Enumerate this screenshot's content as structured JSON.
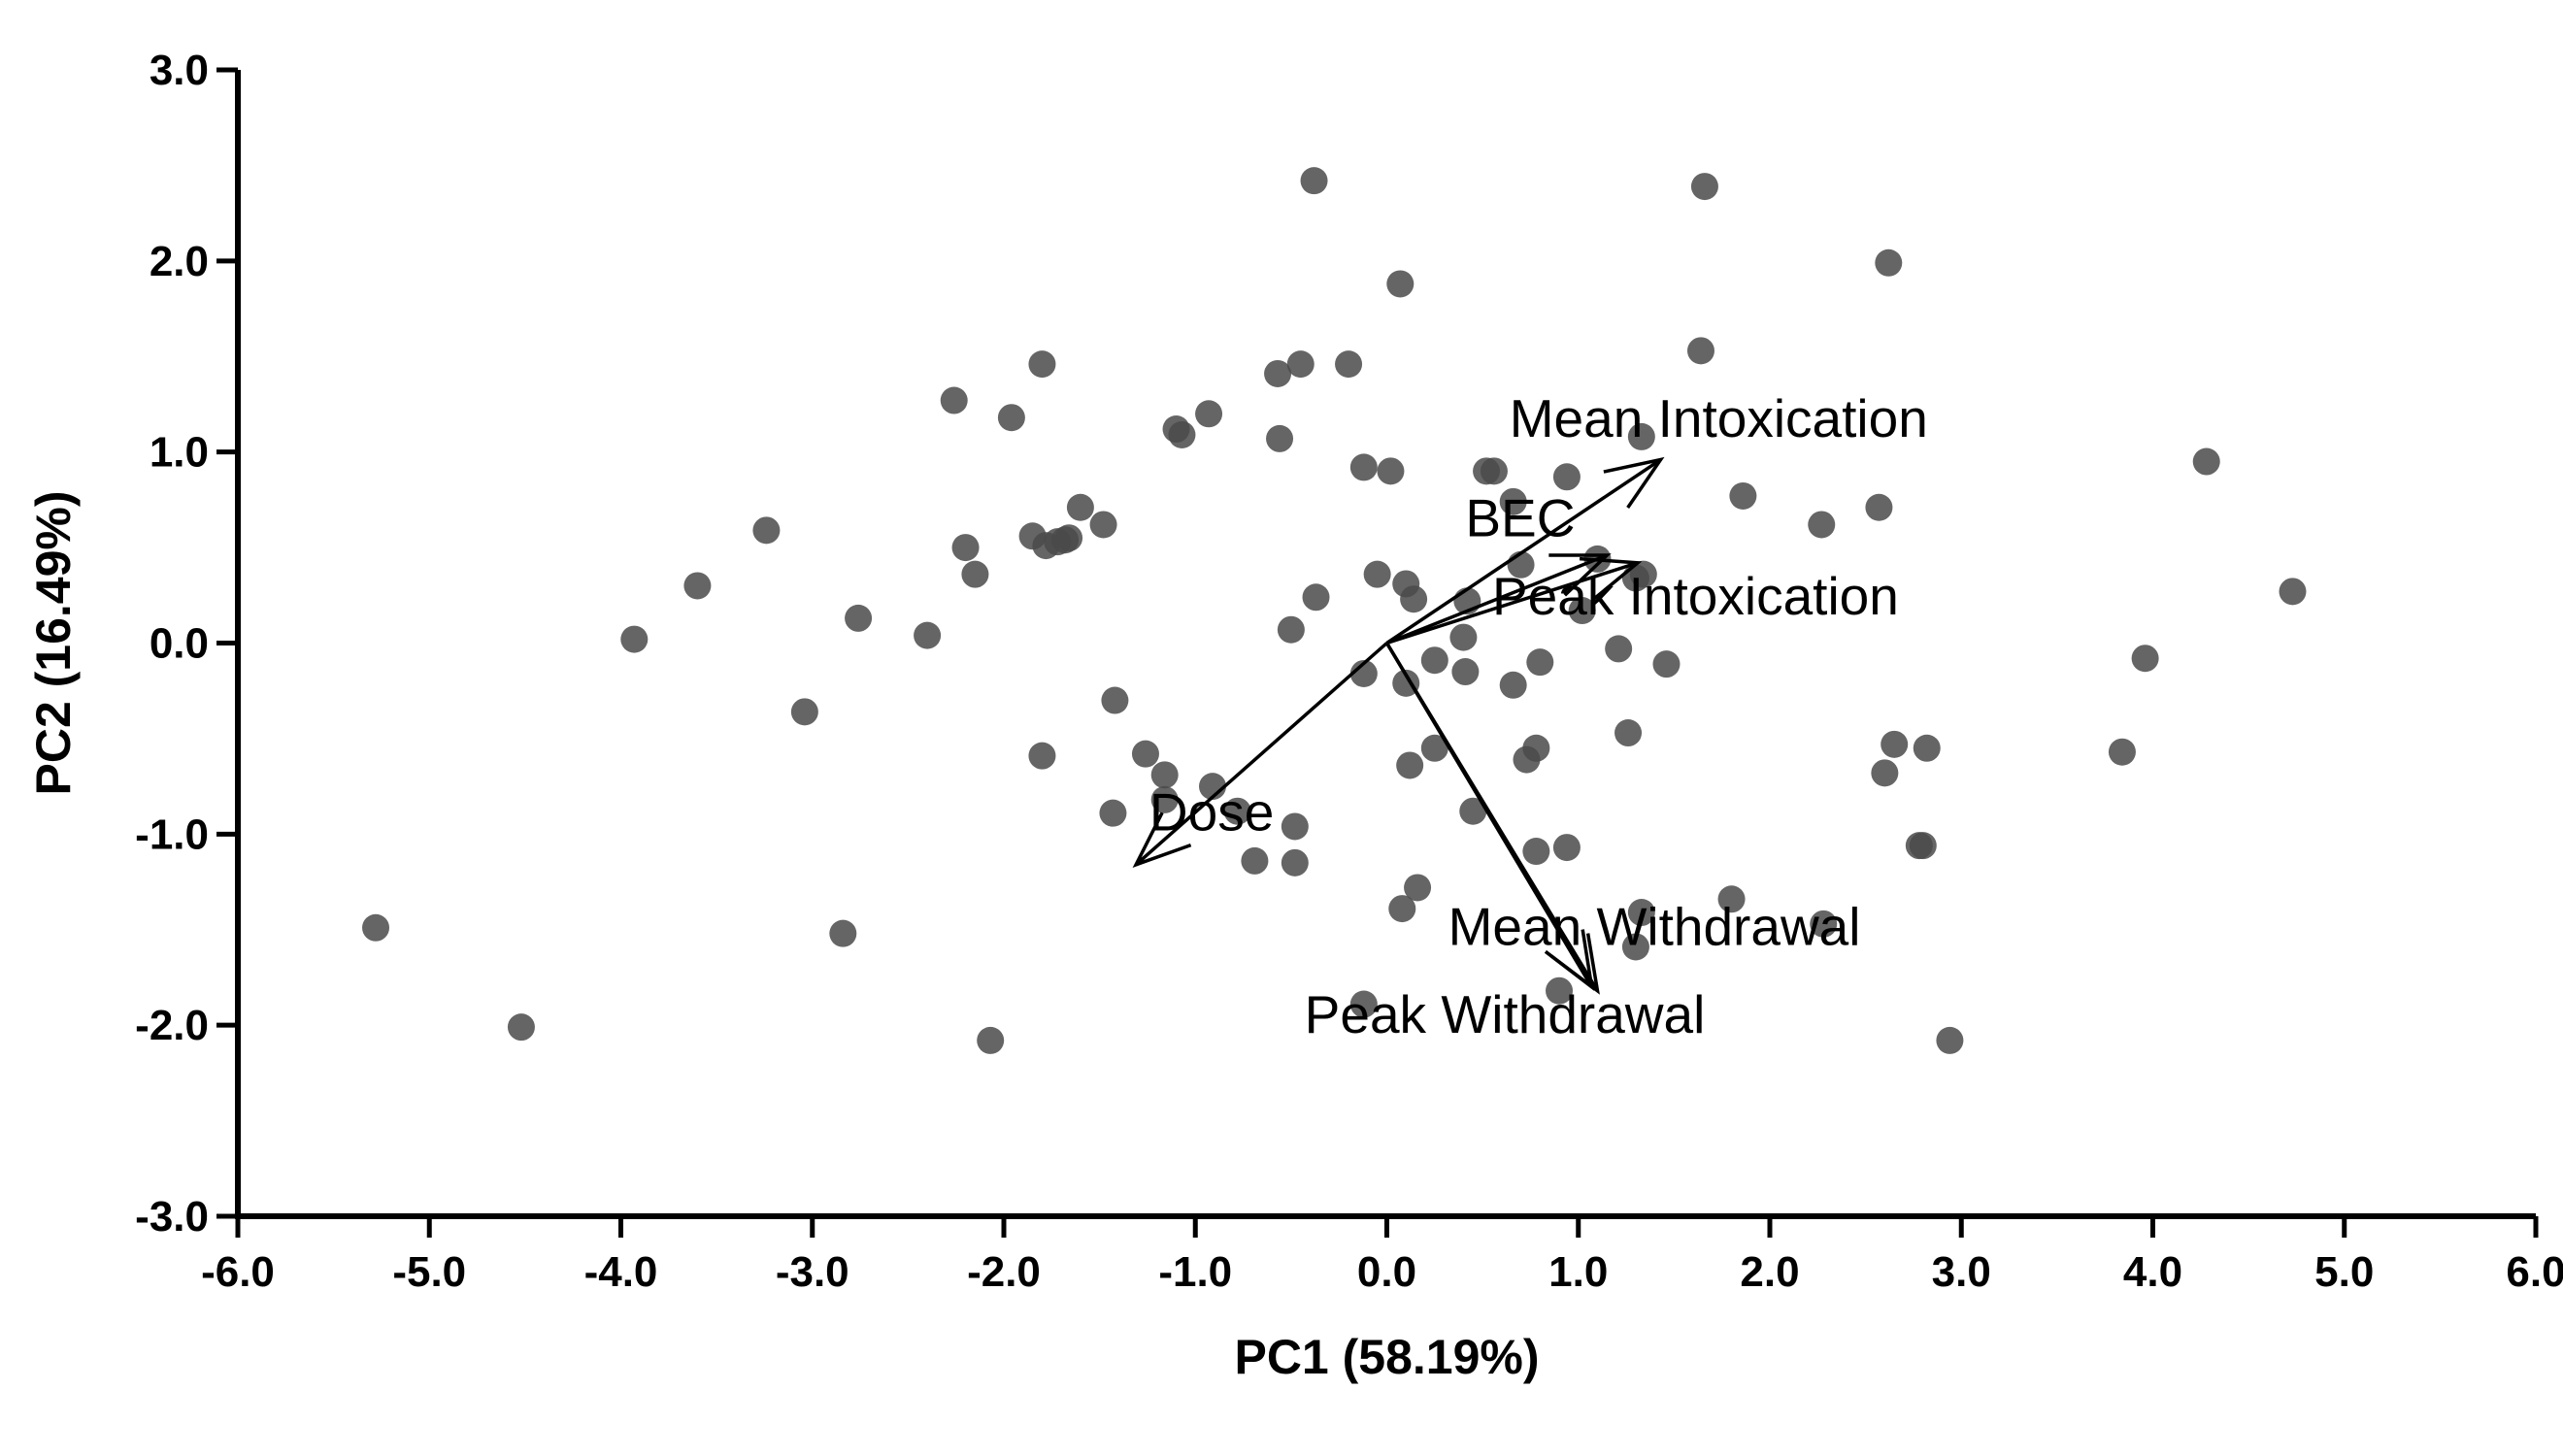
{
  "chart_data": {
    "type": "scatter",
    "title": "",
    "xlabel": "PC1 (58.19%)",
    "ylabel": "PC2 (16.49%)",
    "xlim": [
      -6.0,
      6.0
    ],
    "ylim": [
      -3.0,
      3.0
    ],
    "xticks": [
      "-6.0",
      "-5.0",
      "-4.0",
      "-3.0",
      "-2.0",
      "-1.0",
      "0.0",
      "1.0",
      "2.0",
      "3.0",
      "4.0",
      "5.0",
      "6.0"
    ],
    "yticks": [
      "-3.0",
      "-2.0",
      "-1.0",
      "0.0",
      "1.0",
      "2.0",
      "3.0"
    ],
    "grid": false,
    "legend": "none",
    "point_color": "#4a4a4a",
    "points": [
      [
        -5.28,
        -1.49
      ],
      [
        -4.52,
        -2.01
      ],
      [
        -3.93,
        0.02
      ],
      [
        -3.6,
        0.3
      ],
      [
        -3.24,
        0.59
      ],
      [
        -3.04,
        -0.36
      ],
      [
        -2.84,
        -1.52
      ],
      [
        -2.76,
        0.13
      ],
      [
        -2.4,
        0.04
      ],
      [
        -2.26,
        1.27
      ],
      [
        -2.2,
        0.5
      ],
      [
        -2.15,
        0.36
      ],
      [
        -2.07,
        -2.08
      ],
      [
        -1.96,
        1.18
      ],
      [
        -1.85,
        0.56
      ],
      [
        -1.8,
        1.46
      ],
      [
        -1.78,
        0.51
      ],
      [
        -1.8,
        -0.59
      ],
      [
        -1.72,
        0.53
      ],
      [
        -1.68,
        0.54
      ],
      [
        -1.66,
        0.55
      ],
      [
        -1.6,
        0.71
      ],
      [
        -1.48,
        0.62
      ],
      [
        -1.42,
        -0.3
      ],
      [
        -1.43,
        -0.89
      ],
      [
        -1.26,
        -0.58
      ],
      [
        -1.16,
        -0.69
      ],
      [
        -1.16,
        -0.82
      ],
      [
        -1.1,
        1.12
      ],
      [
        -1.07,
        1.09
      ],
      [
        -0.93,
        1.2
      ],
      [
        -0.91,
        -0.75
      ],
      [
        -0.78,
        -0.88
      ],
      [
        -0.69,
        -1.14
      ],
      [
        -0.57,
        1.41
      ],
      [
        -0.56,
        1.07
      ],
      [
        -0.5,
        0.07
      ],
      [
        -0.48,
        -0.96
      ],
      [
        -0.48,
        -1.15
      ],
      [
        -0.45,
        1.46
      ],
      [
        -0.38,
        2.42
      ],
      [
        -0.37,
        0.24
      ],
      [
        -0.2,
        1.46
      ],
      [
        -0.12,
        0.92
      ],
      [
        -0.12,
        -0.16
      ],
      [
        -0.12,
        -1.89
      ],
      [
        -0.05,
        0.36
      ],
      [
        0.02,
        0.9
      ],
      [
        0.07,
        1.88
      ],
      [
        0.08,
        -1.39
      ],
      [
        0.1,
        0.31
      ],
      [
        0.1,
        -0.21
      ],
      [
        0.12,
        -0.64
      ],
      [
        0.14,
        0.23
      ],
      [
        0.16,
        -1.28
      ],
      [
        0.25,
        -0.55
      ],
      [
        0.25,
        -0.09
      ],
      [
        0.4,
        0.03
      ],
      [
        0.41,
        -0.15
      ],
      [
        0.42,
        0.22
      ],
      [
        0.45,
        -0.88
      ],
      [
        0.52,
        0.9
      ],
      [
        0.56,
        0.9
      ],
      [
        0.66,
        -0.22
      ],
      [
        0.66,
        0.74
      ],
      [
        0.7,
        0.41
      ],
      [
        0.73,
        -0.61
      ],
      [
        0.78,
        -0.55
      ],
      [
        0.78,
        -1.09
      ],
      [
        0.8,
        -0.1
      ],
      [
        0.9,
        -1.82
      ],
      [
        0.94,
        0.87
      ],
      [
        0.94,
        -1.07
      ],
      [
        1.02,
        0.17
      ],
      [
        1.1,
        0.44
      ],
      [
        1.21,
        -0.03
      ],
      [
        1.26,
        -0.47
      ],
      [
        1.3,
        -1.59
      ],
      [
        1.3,
        0.34
      ],
      [
        1.33,
        -1.41
      ],
      [
        1.34,
        0.36
      ],
      [
        1.33,
        1.08
      ],
      [
        1.46,
        -0.11
      ],
      [
        1.64,
        1.53
      ],
      [
        1.66,
        2.39
      ],
      [
        1.8,
        -1.34
      ],
      [
        1.86,
        0.77
      ],
      [
        2.27,
        0.62
      ],
      [
        2.28,
        -1.47
      ],
      [
        2.57,
        0.71
      ],
      [
        2.6,
        -0.68
      ],
      [
        2.62,
        1.99
      ],
      [
        2.65,
        -0.53
      ],
      [
        2.78,
        -1.06
      ],
      [
        2.8,
        -1.06
      ],
      [
        2.82,
        -0.55
      ],
      [
        2.94,
        -2.08
      ],
      [
        3.84,
        -0.57
      ],
      [
        3.96,
        -0.08
      ],
      [
        4.28,
        0.95
      ],
      [
        4.73,
        0.27
      ]
    ],
    "vectors": [
      {
        "name": "Mean Intoxication",
        "x": 1.43,
        "y": 0.96,
        "label_x": 0.64,
        "label_y": 1.08
      },
      {
        "name": "BEC",
        "x": 1.15,
        "y": 0.46,
        "label_x": 0.41,
        "label_y": 0.56
      },
      {
        "name": "Peak Intoxication",
        "x": 1.31,
        "y": 0.42,
        "label_x": 0.55,
        "label_y": 0.15
      },
      {
        "name": "Dose",
        "x": -1.31,
        "y": -1.16,
        "label_x": -1.24,
        "label_y": -0.98
      },
      {
        "name": "Mean Withdrawal",
        "x": 1.07,
        "y": -1.8,
        "label_x": 0.32,
        "label_y": -1.58
      },
      {
        "name": "Peak Withdrawal",
        "x": 1.1,
        "y": -1.82,
        "label_x": -0.43,
        "label_y": -2.04
      }
    ]
  }
}
